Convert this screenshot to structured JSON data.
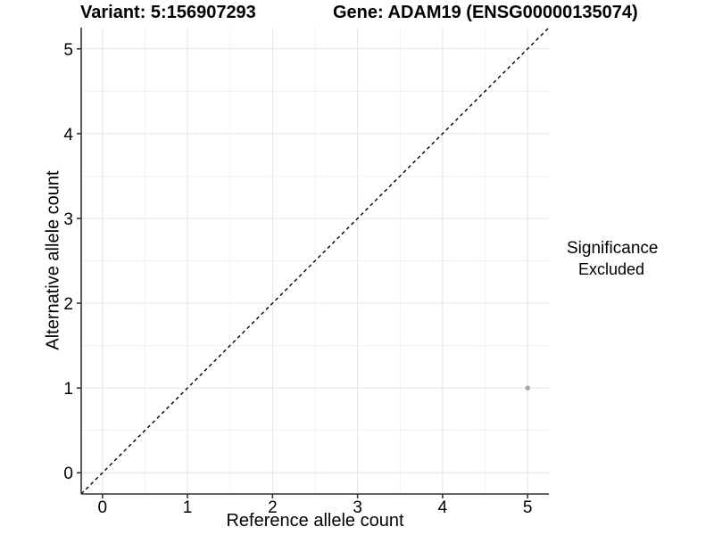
{
  "chart_data": {
    "type": "scatter",
    "title_left": "Variant: 5:156907293",
    "title_right": "Gene: ADAM19 (ENSG00000135074)",
    "xlabel": "Reference allele count",
    "ylabel": "Alternative allele count",
    "xlim": [
      -0.25,
      5.25
    ],
    "ylim": [
      -0.25,
      5.25
    ],
    "x_ticks": [
      0,
      1,
      2,
      3,
      4,
      5
    ],
    "y_ticks": [
      0,
      1,
      2,
      3,
      4,
      5
    ],
    "x_tick_labels": [
      "0",
      "1",
      "2",
      "3",
      "4",
      "5"
    ],
    "y_tick_labels": [
      "0",
      "1",
      "2",
      "3",
      "4",
      "5"
    ],
    "minor_ticks": [
      0.5,
      1.5,
      2.5,
      3.5,
      4.5
    ],
    "grid": true,
    "identity_line": {
      "style": "dashed",
      "from": [
        -0.25,
        -0.25
      ],
      "to": [
        5.25,
        5.25
      ]
    },
    "points": [
      {
        "x": 5,
        "y": 1,
        "series": "Excluded"
      }
    ],
    "legend": {
      "position": "right",
      "title": "Significance",
      "entries": [
        {
          "label": "Excluded",
          "color": "#a3a3a3"
        }
      ]
    },
    "colors": {
      "axis": "#333333",
      "grid_major": "#e4e4e4",
      "grid_minor": "#f1f1f1",
      "identity_line": "#000000",
      "point": "#a9a9a9",
      "text": "#000000"
    }
  }
}
